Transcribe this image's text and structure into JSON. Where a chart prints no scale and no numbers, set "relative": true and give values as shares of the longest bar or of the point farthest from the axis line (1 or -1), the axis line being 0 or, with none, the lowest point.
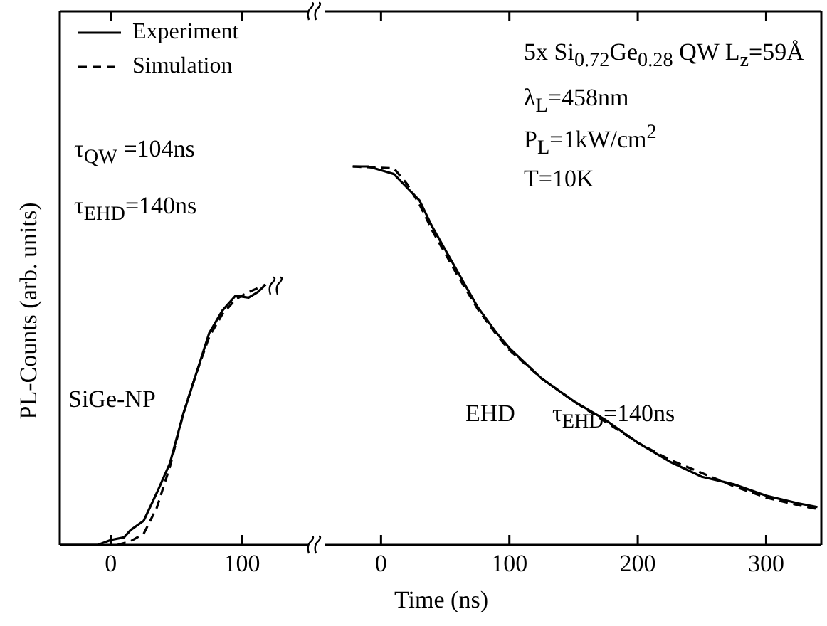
{
  "chart_data": [
    {
      "type": "line",
      "relative": true,
      "ylabel": "PL-Counts (arb. units)",
      "xlim": [
        -39,
        151
      ],
      "xticks": [
        0,
        100
      ],
      "legend": "top left",
      "grid": false,
      "annotations": [
        "τ$_{QW}$ =104ns",
        "τ$_{EHD}$=140ns",
        "SiGe-NP"
      ],
      "series": [
        {
          "name": "Experiment",
          "color": "#000000",
          "line_style": "solid",
          "x": [
            -39,
            -30,
            -10,
            0,
            10,
            15,
            25,
            35,
            45,
            55,
            65,
            75,
            85,
            95,
            105,
            112,
            118
          ],
          "values": [
            0,
            0,
            0,
            0.019,
            0.029,
            0.057,
            0.093,
            0.2,
            0.314,
            0.5,
            0.657,
            0.814,
            0.9,
            0.957,
            0.95,
            0.971,
            1
          ]
        },
        {
          "name": "Simulation",
          "color": "#000000",
          "line_style": "dashed",
          "x": [
            5,
            15,
            25,
            35,
            45,
            55,
            65,
            75,
            85,
            95,
            105,
            118
          ],
          "values": [
            0,
            0.014,
            0.043,
            0.143,
            0.3,
            0.5,
            0.657,
            0.8,
            0.886,
            0.943,
            0.971,
            1
          ]
        }
      ]
    },
    {
      "type": "line",
      "relative": true,
      "xlabel": "Time (ns)",
      "xlim": [
        -44,
        343
      ],
      "xticks": [
        0,
        100,
        200,
        300
      ],
      "grid": false,
      "annotations": [
        "5x Si$_{0.72}$Ge$_{0.28}$ QW L$_{z}$=59Å",
        "λ$_{L}$=458nm",
        "P$_{L}$=1kW/cm$^{2}$",
        "T=10K",
        "EHD",
        "τ$_{EHD}$=140ns"
      ],
      "series": [
        {
          "color": "#000000",
          "line_style": "solid",
          "x": [
            -22,
            -10,
            0,
            10,
            20,
            30,
            40,
            50,
            60,
            75,
            90,
            100,
            125,
            150,
            175,
            200,
            225,
            250,
            275,
            300,
            325,
            340
          ],
          "values": [
            1,
            1,
            0.99,
            0.98,
            0.945,
            0.91,
            0.84,
            0.78,
            0.72,
            0.63,
            0.56,
            0.52,
            0.44,
            0.38,
            0.33,
            0.27,
            0.22,
            0.18,
            0.16,
            0.13,
            0.11,
            0.1
          ]
        },
        {
          "color": "#000000",
          "line_style": "dashed",
          "x": [
            -22,
            10,
            20,
            30,
            40,
            50,
            60,
            75,
            90,
            100,
            125,
            150,
            175,
            200,
            225,
            250,
            275,
            300,
            325,
            340
          ],
          "values": [
            1,
            0.995,
            0.955,
            0.9,
            0.83,
            0.77,
            0.71,
            0.625,
            0.555,
            0.515,
            0.44,
            0.38,
            0.325,
            0.27,
            0.225,
            0.19,
            0.155,
            0.125,
            0.105,
            0.095
          ]
        }
      ]
    }
  ]
}
